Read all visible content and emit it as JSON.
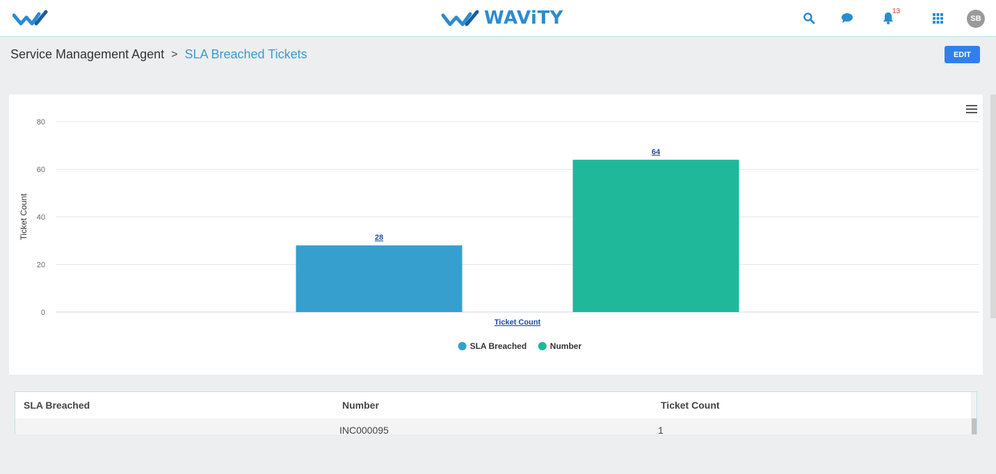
{
  "header": {
    "brand_name": "WAViTY",
    "notifications_count": "13",
    "avatar_initials": "SB",
    "colors": {
      "brand_blue": "#2a8cd0",
      "brand_dark": "#1d5e9c",
      "notification_badge": "#d0342c"
    },
    "icons": [
      "wavity-logo-icon",
      "search-icon",
      "chat-icon",
      "bell-icon",
      "apps-grid-icon"
    ]
  },
  "breadcrumb": {
    "parent": "Service Management Agent",
    "separator": ">",
    "current": "SLA Breached Tickets"
  },
  "toolbar": {
    "edit_label": "EDIT"
  },
  "chart_data": {
    "type": "bar",
    "categories": [
      "Ticket Count"
    ],
    "series": [
      {
        "name": "SLA Breached",
        "values": [
          28
        ],
        "color": "#369fce"
      },
      {
        "name": "Number",
        "values": [
          64
        ],
        "color": "#1fb89a"
      }
    ],
    "ylabel": "Ticket Count",
    "xlabel": "",
    "ylim": [
      0,
      80
    ],
    "yticks": [
      0,
      20,
      40,
      60,
      80
    ],
    "grid": true,
    "legend": "bottom-center"
  },
  "table": {
    "columns": [
      "SLA Breached",
      "Number",
      "Ticket Count"
    ],
    "rows": [
      [
        "",
        "INC000095",
        "1"
      ]
    ]
  }
}
